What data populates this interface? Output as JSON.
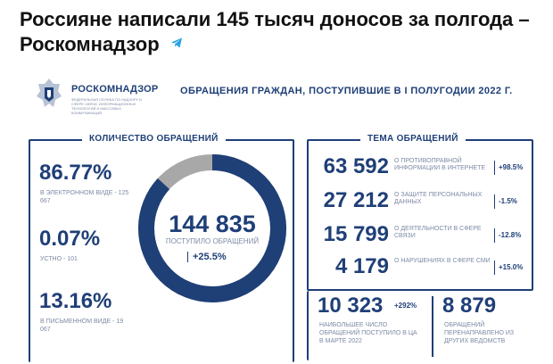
{
  "headline": {
    "text": "Россияне написали 145 тысяч доносов за полгода – Роскомнадзор",
    "icon": "telegram-icon",
    "icon_color": "#2aa3e0"
  },
  "header": {
    "brand": "РОСКОМНАДЗОР",
    "brand_sub": "ФЕДЕРАЛЬНАЯ СЛУЖБА ПО НАДЗОРУ В СФЕРЕ СВЯЗИ, ИНФОРМАЦИОННЫХ ТЕХНОЛОГИЙ И МАССОВЫХ КОММУНИКАЦИЙ",
    "title": "ОБРАЩЕНИЯ ГРАЖДАН, ПОСТУПИВШИЕ В I ПОЛУГОДИИ 2022 Г.",
    "logo": "emblem-icon"
  },
  "colors": {
    "primary": "#1f3f77",
    "muted": "#7d8aa5",
    "ring_gray": "#a8a8a8"
  },
  "left": {
    "legend": "КОЛИЧЕСТВО ОБРАЩЕНИЙ",
    "items": [
      {
        "value": "86.77%",
        "label": "В ЭЛЕКТРОННОМ ВИДЕ - 125 667"
      },
      {
        "value": "0.07%",
        "label": "УСТНО - 101"
      },
      {
        "value": "13.16%",
        "label": "В ПИСЬМЕННОМ ВИДЕ - 19 067"
      }
    ],
    "total": "144 835",
    "total_label": "ПОСТУПИЛО ОБРАЩЕНИЙ",
    "total_change": "+25.5%",
    "ring_fractions": {
      "electronic": 0.8677,
      "oral": 0.0007,
      "written": 0.1316
    }
  },
  "right": {
    "legend": "ТЕМА ОБРАЩЕНИЙ",
    "topics": [
      {
        "value": "63 592",
        "label": "О ПРОТИВОПРАВНОЙ ИНФОРМАЦИИ В ИНТЕРНЕТЕ",
        "change": "+98.5%"
      },
      {
        "value": "27 212",
        "label": "О ЗАЩИТЕ ПЕРСОНАЛЬНЫХ ДАННЫХ",
        "change": "-1.5%"
      },
      {
        "value": "15 799",
        "label": "О ДЕЯТЕЛЬНОСТИ В СФЕРЕ СВЯЗИ",
        "change": "-12.8%"
      },
      {
        "value": "4 179",
        "label": "О НАРУШЕНИЯХ В СФЕРЕ СМИ",
        "change": "+15.0%"
      }
    ],
    "bottom": [
      {
        "value": "10 323",
        "change": "+292%",
        "label": "НАИБОЛЬШЕЕ ЧИСЛО ОБРАЩЕНИЙ ПОСТУПИЛО В ЦА В МАРТЕ 2022"
      },
      {
        "value": "8 879",
        "label": "ОБРАЩЕНИЙ ПЕРЕНАПРАВЛЕНО ИЗ ДРУГИХ ВЕДОМСТВ"
      }
    ]
  }
}
